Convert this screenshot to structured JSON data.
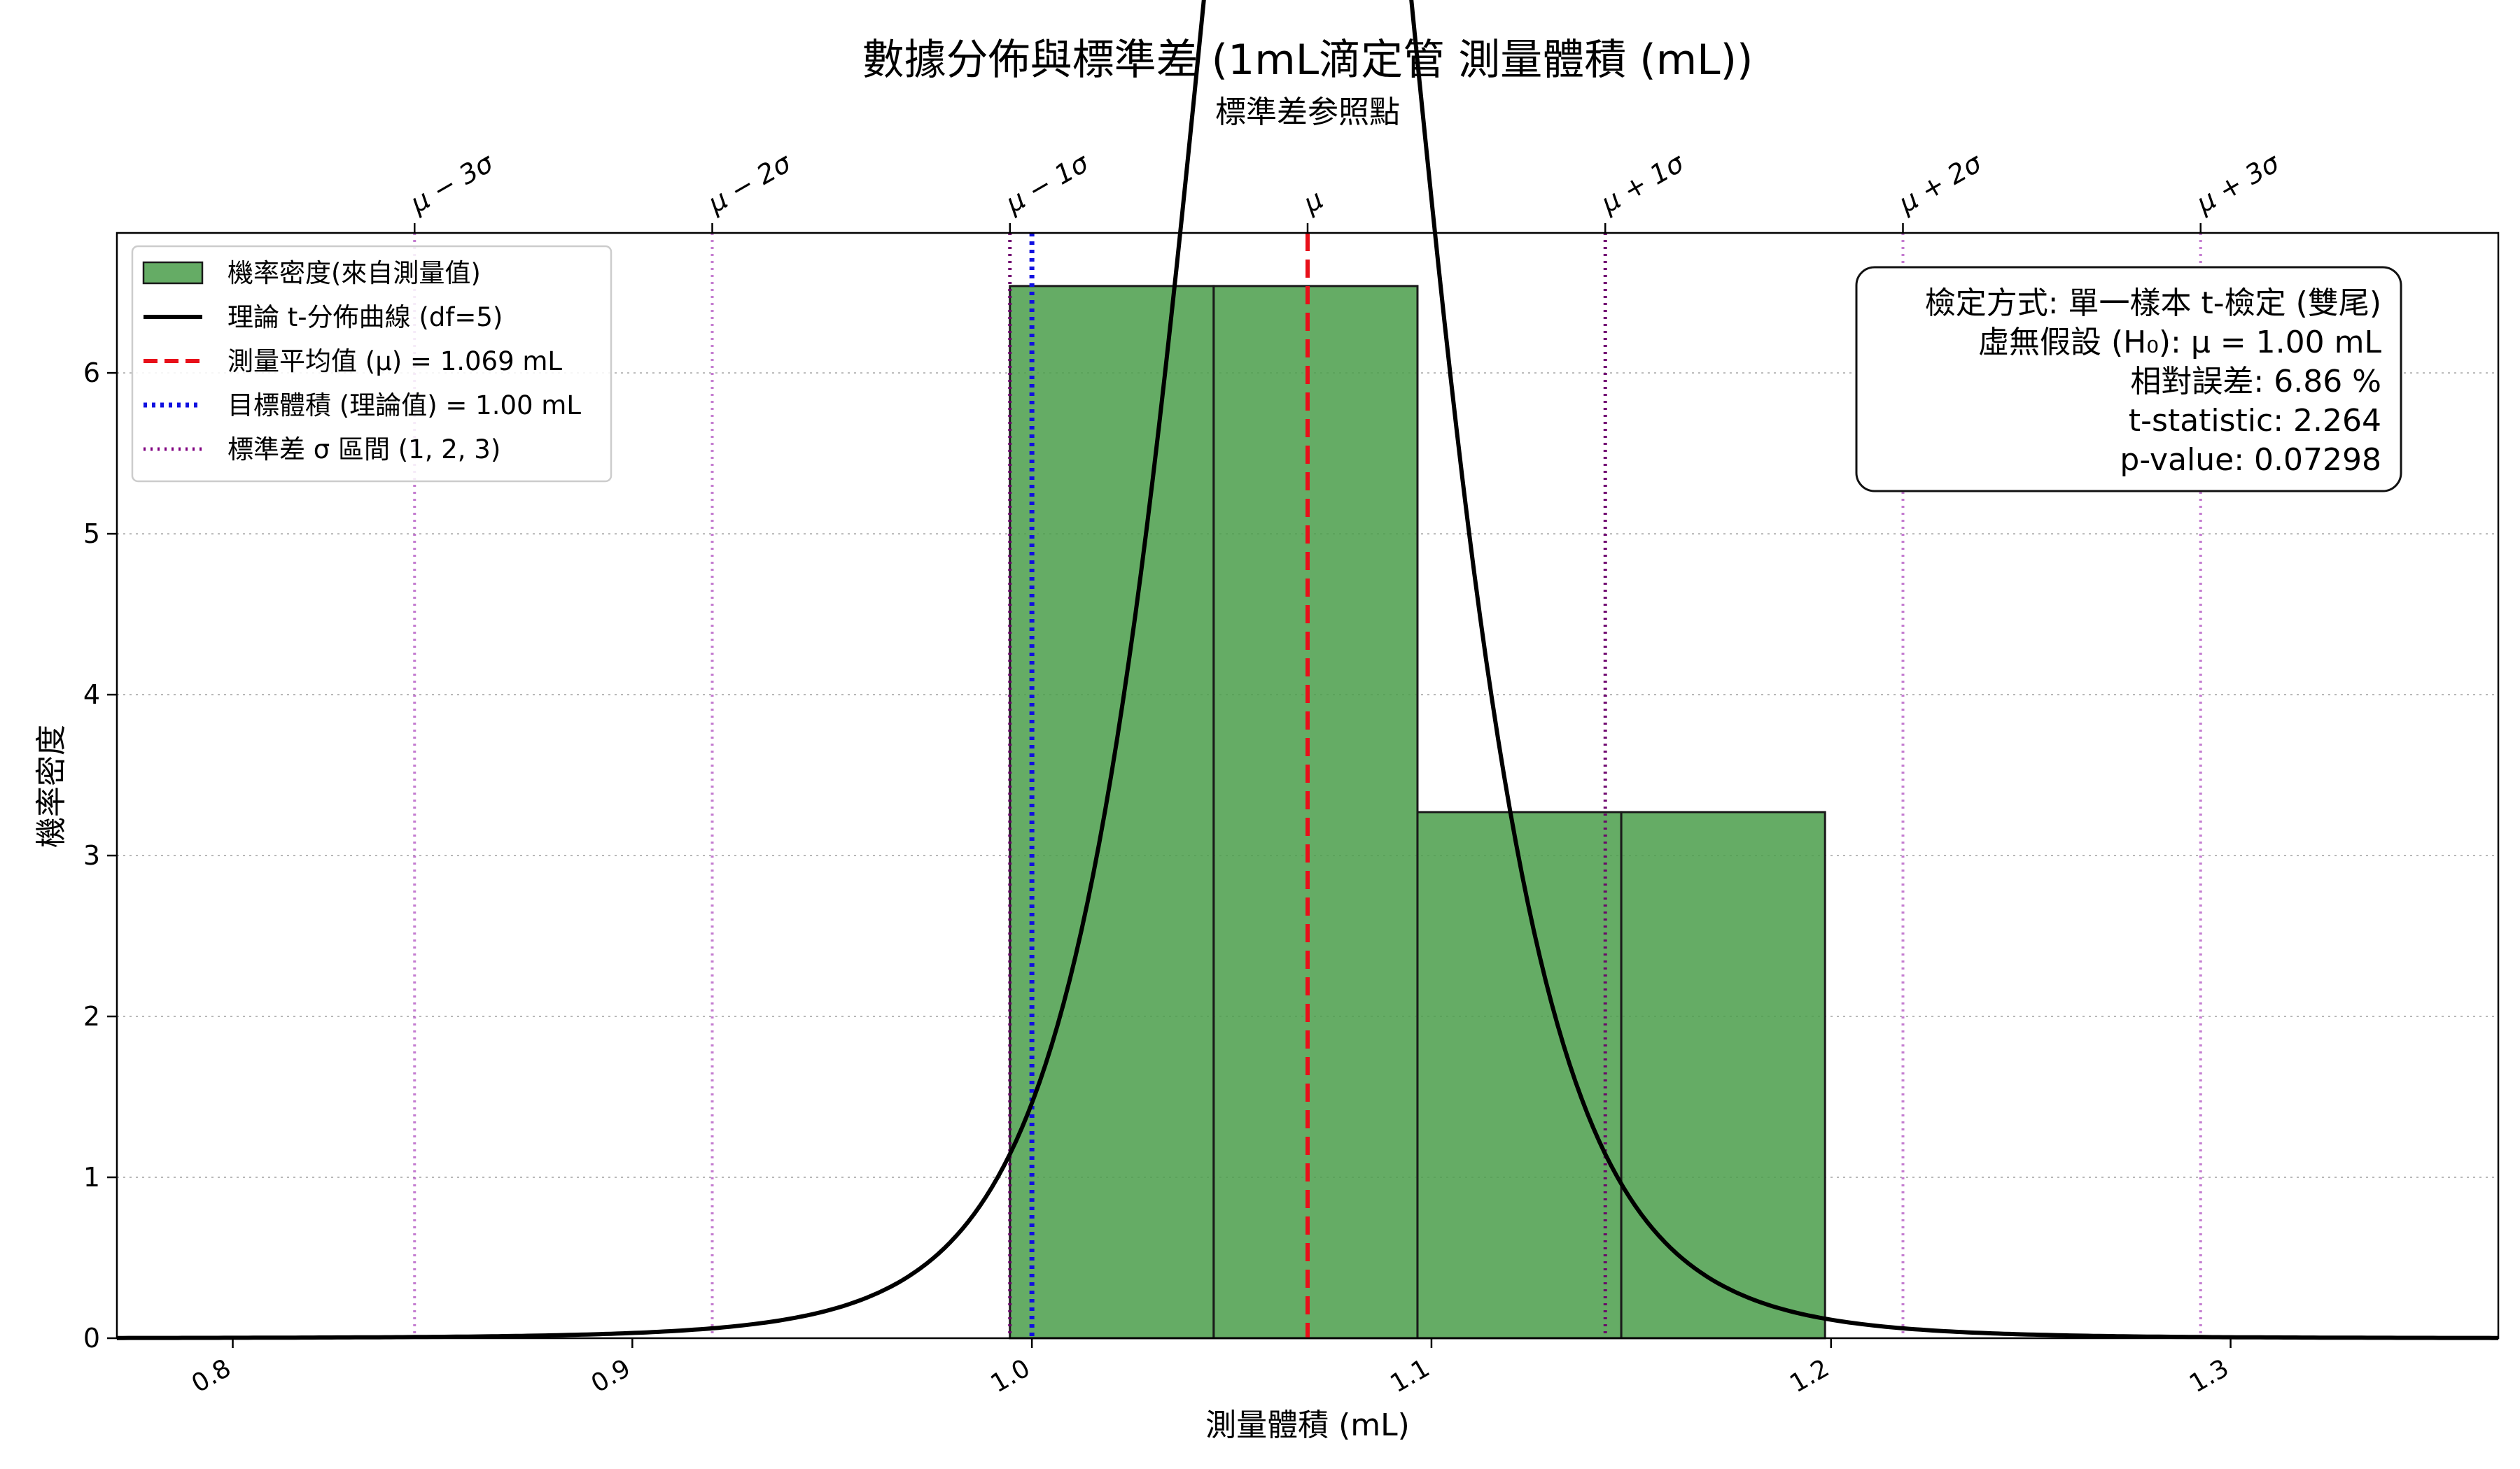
{
  "chart_data": {
    "type": "bar",
    "title": "數據分佈與標準差 (1mL滴定管 測量體積 (mL))",
    "top_axis_label": "標準差参照點",
    "xlabel": "測量體積 (mL)",
    "ylabel": "機率密度",
    "xlim": [
      0.771,
      1.367
    ],
    "ylim": [
      0,
      6.87
    ],
    "xticks": [
      0.8,
      0.9,
      1.0,
      1.1,
      1.2,
      1.3
    ],
    "xtick_labels": [
      "0.8",
      "0.9",
      "1.0",
      "1.1",
      "1.2",
      "1.3"
    ],
    "yticks": [
      0,
      1,
      2,
      3,
      4,
      5,
      6
    ],
    "ytick_labels": [
      "0",
      "1",
      "2",
      "3",
      "4",
      "5",
      "6"
    ],
    "grid": true,
    "legend_position": "upper-left",
    "histogram": {
      "bins": [
        {
          "x0": 0.9945,
          "x1": 1.0455,
          "density": 6.54
        },
        {
          "x0": 1.0455,
          "x1": 1.0965,
          "density": 6.54
        },
        {
          "x0": 1.0965,
          "x1": 1.1475,
          "density": 3.27
        },
        {
          "x0": 1.1475,
          "x1": 1.1985,
          "density": 3.27
        }
      ],
      "color": "#4a9e4a"
    },
    "t_curve": {
      "df": 5,
      "loc": 1.069,
      "scale": 0.0301,
      "color": "#000000"
    },
    "mean": 1.069,
    "target": 1.0,
    "sigma": 0.0745,
    "sigma_labels": [
      "μ − 3σ",
      "μ − 2σ",
      "μ − 1σ",
      "μ",
      "μ + 1σ",
      "μ + 2σ",
      "μ + 3σ"
    ],
    "legend": [
      {
        "label": "機率密度(來自測量值)",
        "kind": "patch",
        "color": "#4a9e4a"
      },
      {
        "label": "理論 t-分佈曲線 (df=5)",
        "kind": "solid",
        "color": "#000000"
      },
      {
        "label": "測量平均值 (μ) = 1.069 mL",
        "kind": "dashed",
        "color": "#e8101a"
      },
      {
        "label": "目標體積 (理論值) = 1.00 mL",
        "kind": "dotted",
        "color": "#1010e0"
      },
      {
        "label": "標準差 σ 區間 (1, 2, 3)",
        "kind": "dotted",
        "color": "#800080"
      }
    ],
    "stats_box": [
      "檢定方式: 單一樣本 t-檢定 (雙尾)",
      "虛無假設 (H₀): μ = 1.00 mL",
      "相對誤差: 6.86 %",
      "t-statistic: 2.264",
      "p-value: 0.07298"
    ]
  }
}
